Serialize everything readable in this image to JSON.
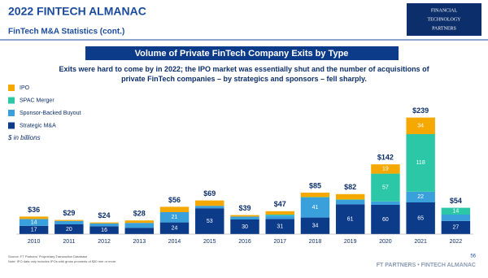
{
  "header": {
    "title": "2022 FINTECH ALMANAC",
    "subtitle": "FinTech M&A Statistics (cont.)",
    "logo": [
      "FINANCIAL",
      "TECHNOLOGY",
      "PARTNERS"
    ]
  },
  "chart_data": {
    "type": "stacked-bar",
    "title": "Volume of Private FinTech Company Exits by Type",
    "subtitle": "Exits were hard to come by in 2022; the IPO market was essentially shut and the number of acquisitions of private FinTech companies – by strategics and sponsors – fell sharply.",
    "unit_note": "$ in billions",
    "categories": [
      "2010",
      "2011",
      "2012",
      "2013",
      "2014",
      "2015",
      "2016",
      "2017",
      "2018",
      "2019",
      "2020",
      "2021",
      "2022"
    ],
    "totals": [
      "$36",
      "$29",
      "$24",
      "$28",
      "$56",
      "$69",
      "$39",
      "$47",
      "$85",
      "$82",
      "$142",
      "$239",
      "$54"
    ],
    "series": [
      {
        "name": "Strategic M&A",
        "color": "#0c3b8a",
        "values": [
          17,
          20,
          16,
          13,
          24,
          53,
          30,
          31,
          34,
          61,
          60,
          65,
          27
        ]
      },
      {
        "name": "Sponsor-Backed Buyout",
        "color": "#3aa0dc",
        "values": [
          14,
          7,
          6,
          10,
          21,
          5,
          6,
          7,
          41,
          9,
          7,
          22,
          13
        ]
      },
      {
        "name": "SPAC Merger",
        "color": "#2cc7a6",
        "values": [
          0,
          0,
          0,
          0,
          0,
          0,
          0,
          2,
          1,
          1,
          57,
          118,
          14
        ]
      },
      {
        "name": "IPO",
        "color": "#f5a800",
        "values": [
          5,
          2,
          2,
          5,
          11,
          11,
          3,
          7,
          9,
          11,
          19,
          34,
          0
        ]
      }
    ]
  },
  "footer": {
    "source": "Source: FT Partners' Proprietary Transaction Database",
    "note": "Note: IPO data only includes IPOs with gross proceeds of $30 mm or more",
    "page": "56",
    "brand": "FT PARTNERS • FINTECH ALMANAC"
  }
}
